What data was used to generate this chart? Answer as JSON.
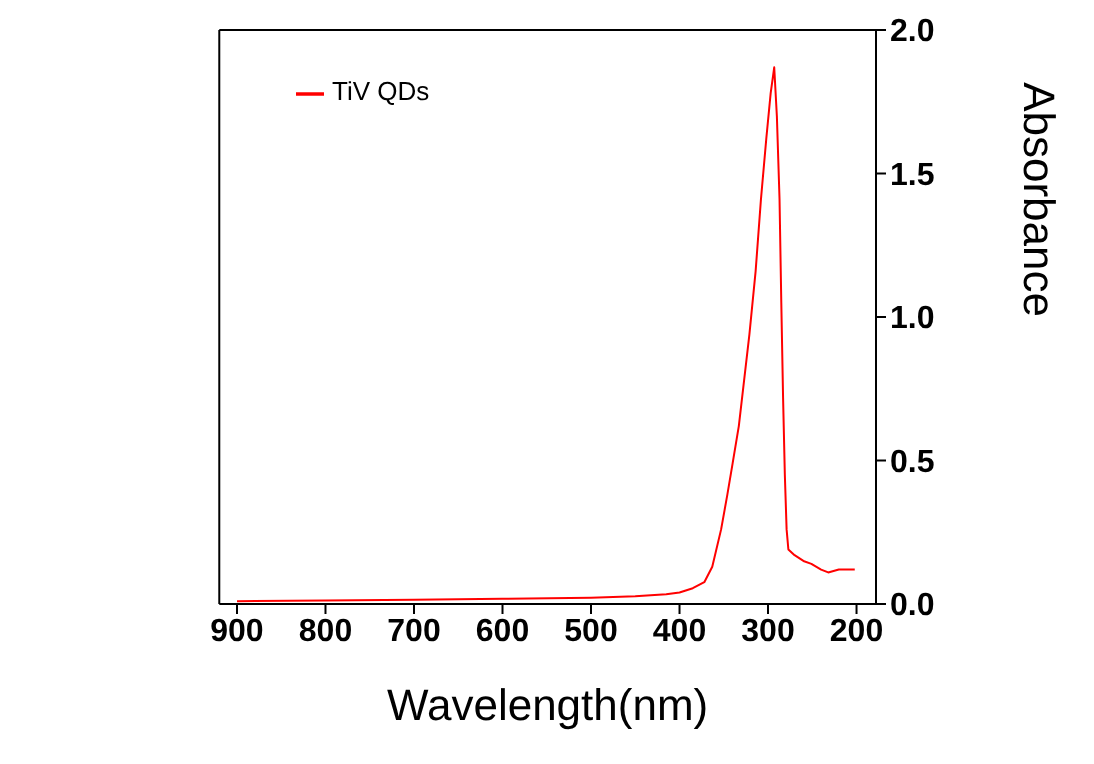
{
  "chart_data": {
    "type": "line",
    "xlabel": "Wavelength(nm)",
    "ylabel": "Absorbance",
    "x": [
      900,
      800,
      700,
      600,
      500,
      450,
      415,
      400,
      385,
      372,
      363,
      353,
      346,
      340,
      333,
      327,
      321,
      314,
      308,
      302,
      297,
      293,
      290,
      287,
      285,
      283,
      281,
      279,
      277,
      270,
      260,
      251,
      240,
      232,
      220,
      210,
      202
    ],
    "series": [
      {
        "name": "TiV QDs",
        "color": "#ff0000",
        "values": [
          0.01,
          0.012,
          0.015,
          0.018,
          0.022,
          0.027,
          0.034,
          0.04,
          0.055,
          0.076,
          0.13,
          0.26,
          0.38,
          0.49,
          0.62,
          0.78,
          0.94,
          1.16,
          1.41,
          1.62,
          1.78,
          1.87,
          1.7,
          1.41,
          1.05,
          0.72,
          0.45,
          0.26,
          0.19,
          0.17,
          0.15,
          0.14,
          0.12,
          0.11,
          0.12,
          0.12,
          0.12
        ]
      }
    ],
    "xlim": [
      920,
      178
    ],
    "xticks": [
      900,
      800,
      700,
      600,
      500,
      400,
      300,
      200
    ],
    "ylim": [
      0,
      2
    ],
    "yticks": [
      {
        "value": 0,
        "label": "0.0"
      },
      {
        "value": 0.5,
        "label": "0.5"
      },
      {
        "value": 1,
        "label": "1.0"
      },
      {
        "value": 1.5,
        "label": "1.5"
      },
      {
        "value": 2,
        "label": "2.0"
      }
    ],
    "grid": false,
    "legend": "top left",
    "marker": "none",
    "line_style": "solid"
  }
}
